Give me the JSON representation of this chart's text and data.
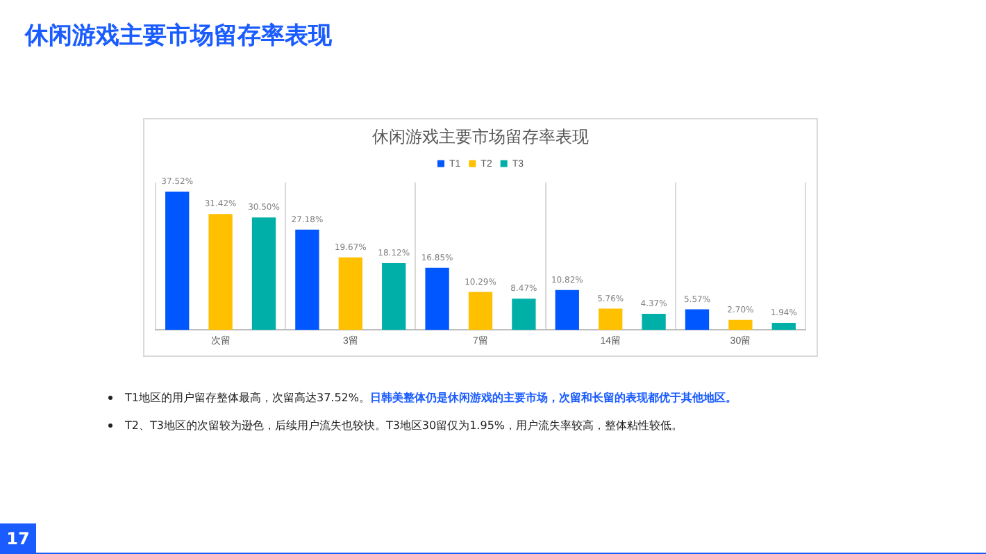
{
  "chart_data": {
    "type": "bar",
    "title": "休闲游戏主要市场留存率表现",
    "categories": [
      "次留",
      "3留",
      "7留",
      "14留",
      "30留"
    ],
    "series": [
      {
        "name": "T1",
        "color": "#0057ff",
        "values": [
          37.52,
          27.18,
          16.85,
          10.82,
          5.57
        ],
        "value_labels": [
          "37.52%",
          "27.18%",
          "16.85%",
          "10.82%",
          "5.57%"
        ]
      },
      {
        "name": "T2",
        "color": "#ffc000",
        "values": [
          31.42,
          19.67,
          10.29,
          5.76,
          2.7
        ],
        "value_labels": [
          "31.42%",
          "19.67%",
          "10.29%",
          "5.76%",
          "2.70%"
        ]
      },
      {
        "name": "T3",
        "color": "#00b0a8",
        "values": [
          30.5,
          18.12,
          8.47,
          4.37,
          1.94
        ],
        "value_labels": [
          "30.50%",
          "18.12%",
          "8.47%",
          "4.37%",
          "1.94%"
        ]
      }
    ],
    "legend": "top",
    "grid": "x",
    "annotations": [
      "休闲游戏主要市场留存率表现",
      "T1地区的用户留存整体最高，次留高达37.52%。",
      "日韩美整体仍是休闲游戏的主要市场，次留和长留的表现都优于其他地区。",
      "T2、T3地区的次留较为逊色，后续用户流失也较快。T3地区30留仅为1.95%，用户流失率较高，整体粘性较低。",
      "17"
    ]
  }
}
